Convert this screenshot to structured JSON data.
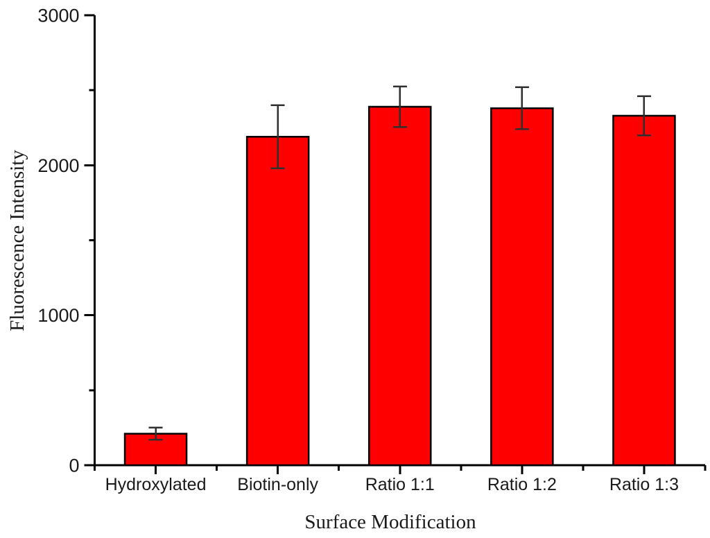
{
  "chart_data": {
    "type": "bar",
    "title": "",
    "xlabel": "Surface Modification",
    "ylabel": "Fluorescence Intensity",
    "categories": [
      "Hydroxylated",
      "Biotin-only",
      "Ratio 1:1",
      "Ratio 1:2",
      "Ratio 1:3"
    ],
    "values": [
      210,
      2190,
      2390,
      2380,
      2330
    ],
    "errors": [
      40,
      210,
      135,
      140,
      130
    ],
    "ylim": [
      0,
      3000
    ],
    "y_major_ticks": [
      0,
      1000,
      2000,
      3000
    ],
    "y_minor_ticks": [
      500,
      1500,
      2500
    ],
    "grid": false,
    "legend_position": "none",
    "bar_color": "#ff0000",
    "bar_border_color": "#000000",
    "error_bar_color": "#2f2f2f",
    "axis_color": "#000000"
  }
}
